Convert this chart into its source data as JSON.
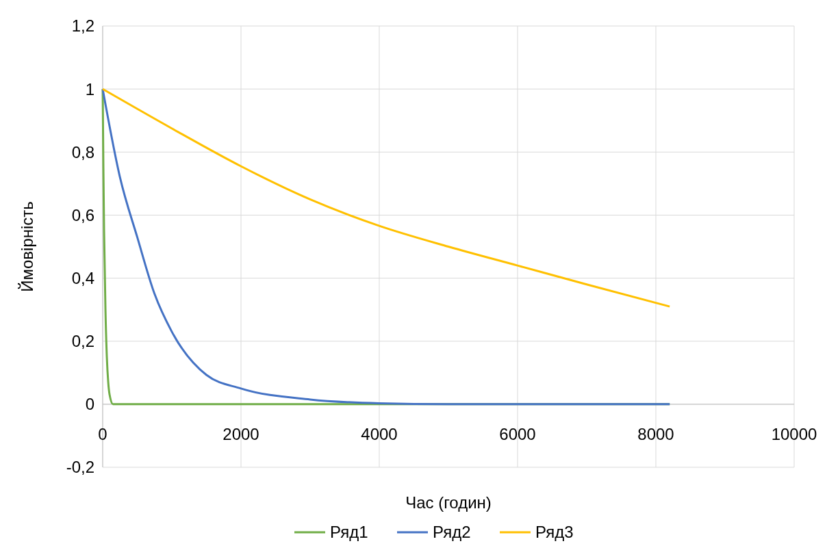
{
  "chart_data": {
    "type": "line",
    "xlabel": "Час (годин)",
    "ylabel": "Ймовірність",
    "xlim": [
      0,
      10000
    ],
    "xticks": [
      0,
      2000,
      4000,
      6000,
      8000,
      10000
    ],
    "ylim": [
      -0.2,
      1.2
    ],
    "yticks": [
      {
        "value": -0.2,
        "label": "-0,2"
      },
      0,
      {
        "value": 0.2,
        "label": "0,2"
      },
      {
        "value": 0.4,
        "label": "0,4"
      },
      {
        "value": 0.6,
        "label": "0,6"
      },
      {
        "value": 0.8,
        "label": "0,8"
      },
      1,
      {
        "value": 1.2,
        "label": "1,2"
      }
    ],
    "grid": true,
    "legend": "bottom",
    "marker": "none",
    "line_style": "solid",
    "series": [
      {
        "name": "Ряд1",
        "color": "#70ad47",
        "x": [
          0,
          10,
          20,
          40,
          60,
          80,
          100,
          150,
          200,
          8200
        ],
        "values": [
          1,
          0.75,
          0.55,
          0.3,
          0.15,
          0.07,
          0.03,
          0,
          0,
          0
        ]
      },
      {
        "name": "Ряд2",
        "color": "#4472c4",
        "x": [
          0,
          250,
          500,
          750,
          1000,
          1500,
          2000,
          3000,
          4000,
          5000,
          8200
        ],
        "values": [
          1,
          0.72,
          0.53,
          0.35,
          0.23,
          0.093,
          0.05,
          0.015,
          0.003,
          0,
          0
        ]
      },
      {
        "name": "Ряд3",
        "color": "#ffc000",
        "x": [
          0,
          1000,
          2000,
          3000,
          4000,
          5000,
          6000,
          7000,
          8200
        ],
        "values": [
          1,
          0.875,
          0.755,
          0.65,
          0.566,
          0.5,
          0.44,
          0.38,
          0.31
        ]
      }
    ]
  }
}
